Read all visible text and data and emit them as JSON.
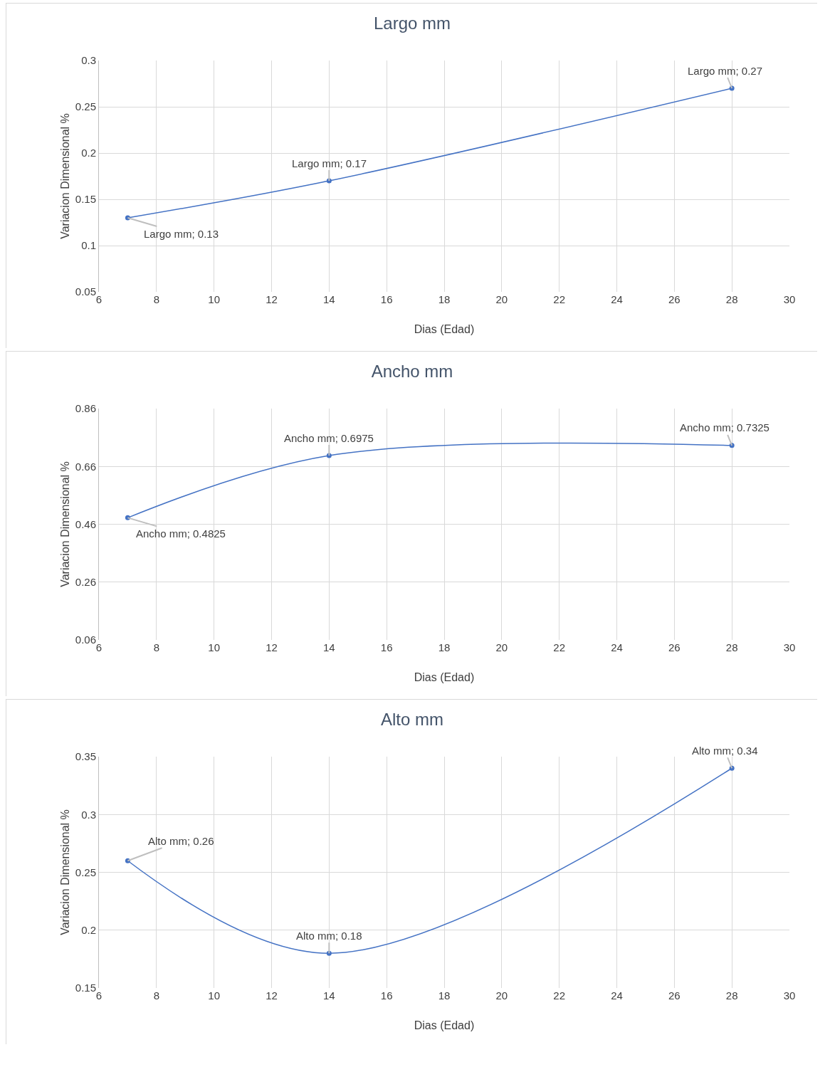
{
  "chart_data": [
    {
      "type": "line",
      "title": "Largo mm",
      "xlabel": "Dias (Edad)",
      "ylabel": "Variacion Dimensional %",
      "x": [
        7,
        14,
        28
      ],
      "series": [
        {
          "color": "#4472c4",
          "values": [
            0.13,
            0.17,
            0.27
          ],
          "value_labels": [
            "Largo mm; 0.13",
            "Largo mm; 0.17",
            "Largo mm; 0.27"
          ]
        }
      ],
      "xlim": [
        6,
        30
      ],
      "xticks": [
        6,
        8,
        10,
        12,
        14,
        16,
        18,
        20,
        22,
        24,
        26,
        28,
        30
      ],
      "ylim": [
        0.05,
        0.3
      ],
      "yticks": [
        0.05,
        0.1,
        0.15,
        0.2,
        0.25,
        0.3
      ],
      "grid": true,
      "marker": "circle",
      "line_style": "solid"
    },
    {
      "type": "line",
      "title": "Ancho mm",
      "xlabel": "Dias (Edad)",
      "ylabel": "Variacion Dimensional %",
      "x": [
        7,
        14,
        28
      ],
      "series": [
        {
          "color": "#4472c4",
          "values": [
            0.4825,
            0.6975,
            0.7325
          ],
          "value_labels": [
            "Ancho mm; 0.4825",
            "Ancho mm; 0.6975",
            "Ancho mm; 0.7325"
          ]
        }
      ],
      "xlim": [
        6,
        30
      ],
      "xticks": [
        6,
        8,
        10,
        12,
        14,
        16,
        18,
        20,
        22,
        24,
        26,
        28,
        30
      ],
      "ylim": [
        0.06,
        0.86
      ],
      "yticks": [
        0.06,
        0.26,
        0.46,
        0.66,
        0.86
      ],
      "grid": true,
      "marker": "circle",
      "line_style": "solid"
    },
    {
      "type": "line",
      "title": "Alto mm",
      "xlabel": "Dias (Edad)",
      "ylabel": "Variacion Dimensional %",
      "x": [
        7,
        14,
        28
      ],
      "series": [
        {
          "color": "#4472c4",
          "values": [
            0.26,
            0.18,
            0.34
          ],
          "value_labels": [
            "Alto mm; 0.26",
            "Alto mm; 0.18",
            "Alto mm; 0.34"
          ]
        }
      ],
      "xlim": [
        6,
        30
      ],
      "xticks": [
        6,
        8,
        10,
        12,
        14,
        16,
        18,
        20,
        22,
        24,
        26,
        28,
        30
      ],
      "ylim": [
        0.15,
        0.35
      ],
      "yticks": [
        0.15,
        0.2,
        0.25,
        0.3,
        0.35
      ],
      "grid": true,
      "marker": "circle",
      "line_style": "solid"
    }
  ]
}
